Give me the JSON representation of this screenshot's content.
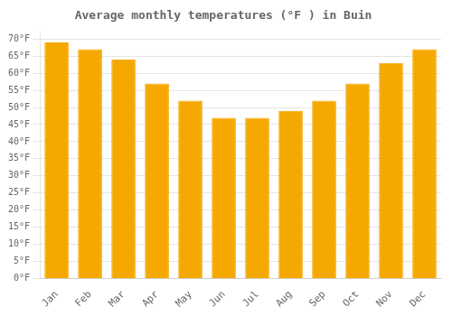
{
  "chart_data": {
    "type": "bar",
    "title": "Average monthly temperatures (°F ) in Buin",
    "categories": [
      "Jan",
      "Feb",
      "Mar",
      "Apr",
      "May",
      "Jun",
      "Jul",
      "Aug",
      "Sep",
      "Oct",
      "Nov",
      "Dec"
    ],
    "values": [
      69,
      67,
      64,
      57,
      52,
      47,
      47,
      49,
      52,
      57,
      63,
      67
    ],
    "color": "#F5A800",
    "ylim": [
      0,
      72
    ],
    "yticks": [
      {
        "value": 0,
        "label": "0°F"
      },
      {
        "value": 5,
        "label": "5°F"
      },
      {
        "value": 10,
        "label": "10°F"
      },
      {
        "value": 15,
        "label": "15°F"
      },
      {
        "value": 20,
        "label": "20°F"
      },
      {
        "value": 25,
        "label": "25°F"
      },
      {
        "value": 30,
        "label": "30°F"
      },
      {
        "value": 35,
        "label": "35°F"
      },
      {
        "value": 40,
        "label": "40°F"
      },
      {
        "value": 45,
        "label": "45°F"
      },
      {
        "value": 50,
        "label": "50°F"
      },
      {
        "value": 55,
        "label": "55°F"
      },
      {
        "value": 60,
        "label": "60°F"
      },
      {
        "value": 65,
        "label": "65°F"
      },
      {
        "value": 70,
        "label": "70°F"
      }
    ],
    "grid": true
  }
}
